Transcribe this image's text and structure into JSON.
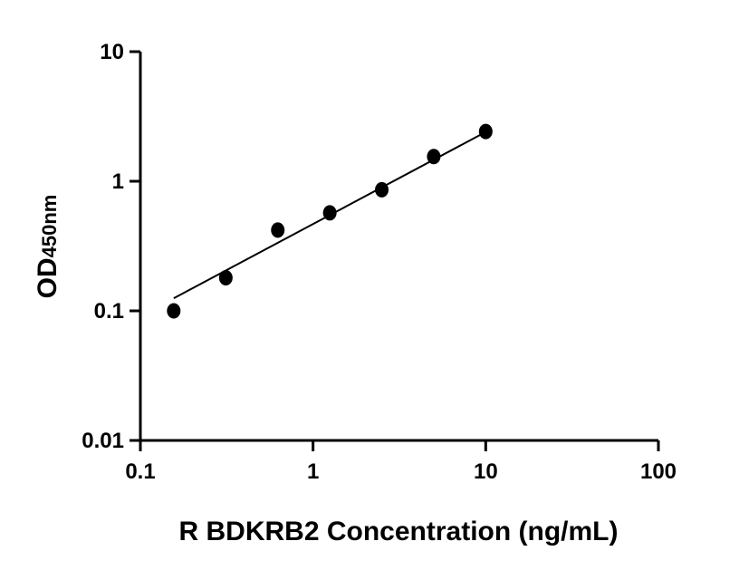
{
  "chart_data": {
    "type": "scatter",
    "title": "",
    "xlabel": "R BDKRB2 Concentration (ng/mL)",
    "ylabel": {
      "main": "OD",
      "subscript": "450nm"
    },
    "x_scale": "log",
    "y_scale": "log",
    "xlim": [
      0.1,
      100
    ],
    "ylim": [
      0.01,
      10
    ],
    "x_ticks": [
      {
        "value": 0.1,
        "label": "0.1"
      },
      {
        "value": 1,
        "label": "1"
      },
      {
        "value": 10,
        "label": "10"
      },
      {
        "value": 100,
        "label": "100"
      }
    ],
    "y_ticks": [
      {
        "value": 0.01,
        "label": "0.01"
      },
      {
        "value": 0.1,
        "label": "0.1"
      },
      {
        "value": 1,
        "label": "1"
      },
      {
        "value": 10,
        "label": "10"
      }
    ],
    "grid": false,
    "legend": "none",
    "series": [
      {
        "kind": "points",
        "color": "#000000",
        "x": [
          0.156,
          0.3125,
          0.625,
          1.25,
          2.5,
          5,
          10
        ],
        "y": [
          0.1,
          0.18,
          0.42,
          0.57,
          0.86,
          1.55,
          2.42
        ]
      },
      {
        "kind": "fit-line",
        "color": "#000000",
        "x": [
          0.156,
          10
        ],
        "y": [
          0.125,
          2.4
        ]
      }
    ]
  }
}
